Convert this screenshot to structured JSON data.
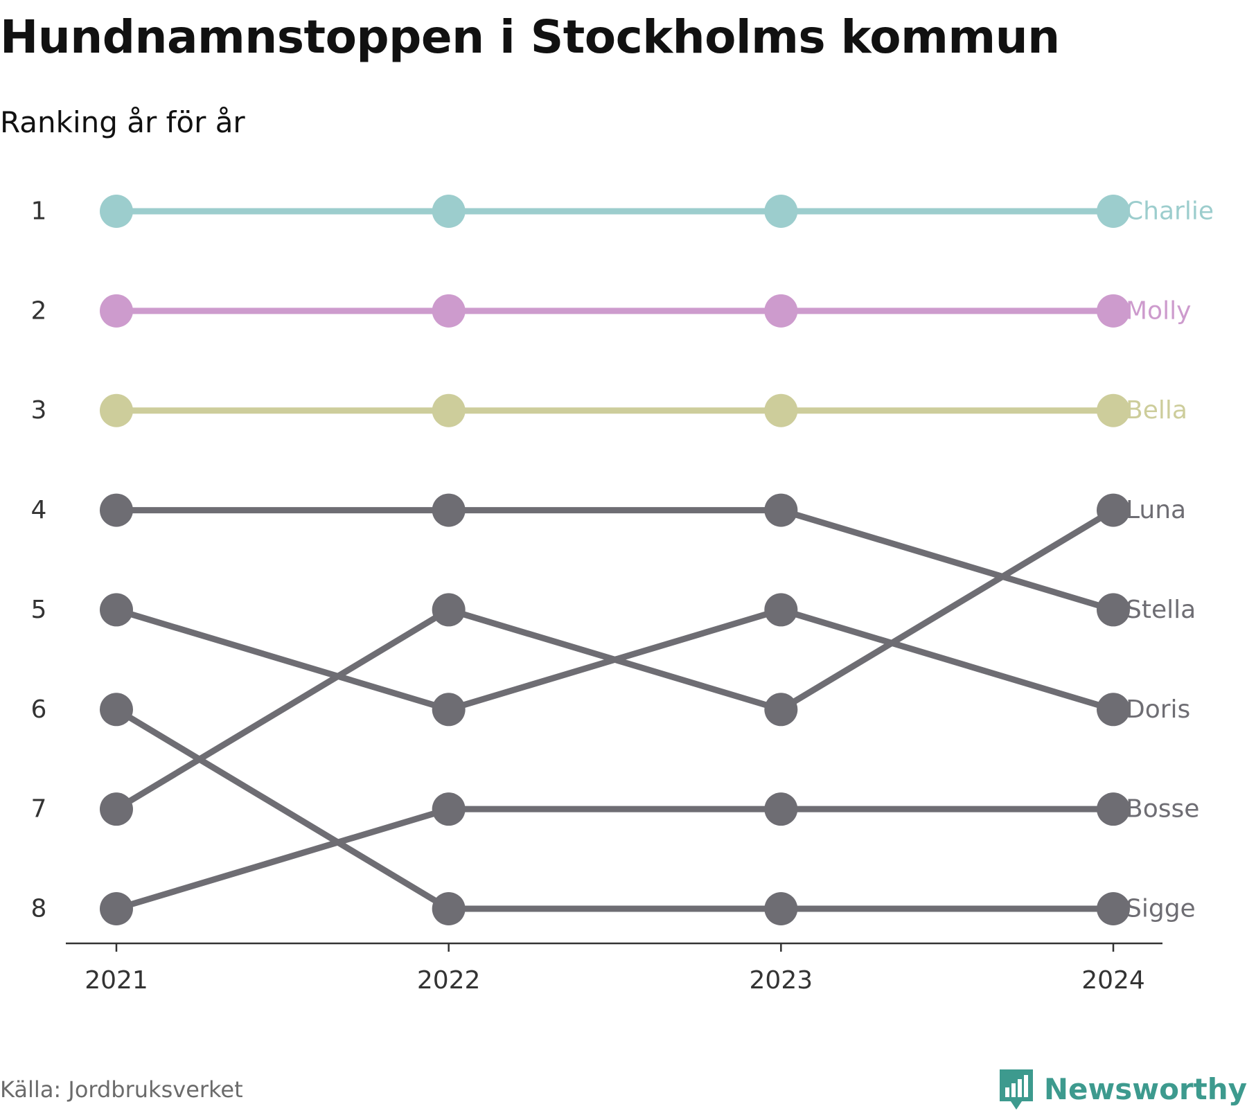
{
  "title": "Hundnamnstoppen i Stockholms kommun",
  "subtitle": "Ranking år för år",
  "source": "Källa: Jordbruksverket",
  "logo": {
    "text": "Newsworthy",
    "color": "#3d9a8e",
    "icon": "bar-chart-speech-bubble-icon"
  },
  "chart_data": {
    "type": "line",
    "chart_kind": "bump",
    "x": [
      "2021",
      "2022",
      "2023",
      "2024"
    ],
    "y_ticks": [
      "1",
      "2",
      "3",
      "4",
      "5",
      "6",
      "7",
      "8"
    ],
    "ylim": [
      1,
      8
    ],
    "y_inverted": true,
    "grid": false,
    "legend": "direct labels at right end of lines",
    "series": [
      {
        "name": "Charlie",
        "values": [
          1,
          1,
          1,
          1
        ],
        "color": "#9ccdcd"
      },
      {
        "name": "Molly",
        "values": [
          2,
          2,
          2,
          2
        ],
        "color": "#cd9bcd"
      },
      {
        "name": "Bella",
        "values": [
          3,
          3,
          3,
          3
        ],
        "color": "#cdcd9b"
      },
      {
        "name": "Luna",
        "values": [
          7,
          5,
          6,
          4
        ],
        "color": "#6e6d73"
      },
      {
        "name": "Stella",
        "values": [
          4,
          4,
          4,
          5
        ],
        "color": "#6e6d73"
      },
      {
        "name": "Doris",
        "values": [
          5,
          6,
          5,
          6
        ],
        "color": "#6e6d73"
      },
      {
        "name": "Bosse",
        "values": [
          8,
          7,
          7,
          7
        ],
        "color": "#6e6d73"
      },
      {
        "name": "Sigge",
        "values": [
          6,
          8,
          8,
          8
        ],
        "color": "#6e6d73"
      }
    ]
  }
}
